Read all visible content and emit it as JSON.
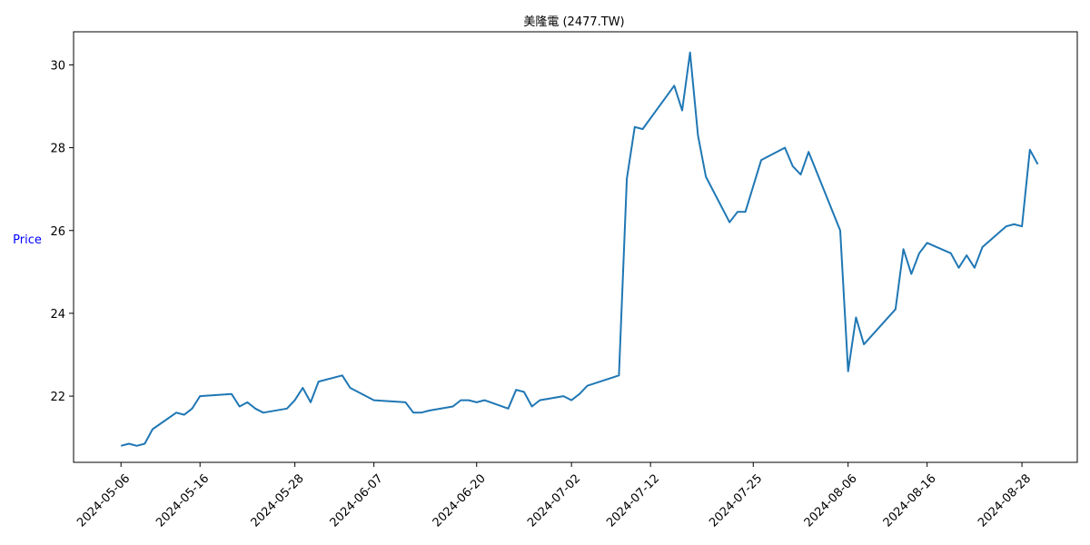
{
  "chart_data": {
    "type": "line",
    "title": "美隆電 (2477.TW)",
    "xlabel": "",
    "ylabel": "Price",
    "ylabel_color": "#0000ff",
    "line_color": "#1f77b4",
    "grid": false,
    "legend": "none",
    "xlim": [
      "2024-04-30",
      "2024-09-04"
    ],
    "ylim": [
      20.4,
      30.8
    ],
    "x_ticks": [
      "2024-05-06",
      "2024-05-16",
      "2024-05-28",
      "2024-06-07",
      "2024-06-20",
      "2024-07-02",
      "2024-07-12",
      "2024-07-25",
      "2024-08-06",
      "2024-08-16",
      "2024-08-28"
    ],
    "y_ticks": [
      22,
      24,
      26,
      28,
      30
    ],
    "series": [
      {
        "x": [
          "2024-05-06",
          "2024-05-07",
          "2024-05-08",
          "2024-05-09",
          "2024-05-10",
          "2024-05-13",
          "2024-05-14",
          "2024-05-15",
          "2024-05-16",
          "2024-05-20",
          "2024-05-21",
          "2024-05-22",
          "2024-05-23",
          "2024-05-24",
          "2024-05-27",
          "2024-05-28",
          "2024-05-29",
          "2024-05-30",
          "2024-05-31",
          "2024-06-03",
          "2024-06-04",
          "2024-06-07",
          "2024-06-11",
          "2024-06-12",
          "2024-06-13",
          "2024-06-14",
          "2024-06-17",
          "2024-06-18",
          "2024-06-19",
          "2024-06-20",
          "2024-06-21",
          "2024-06-24",
          "2024-06-25",
          "2024-06-26",
          "2024-06-27",
          "2024-06-28",
          "2024-07-01",
          "2024-07-02",
          "2024-07-03",
          "2024-07-04",
          "2024-07-08",
          "2024-07-09",
          "2024-07-10",
          "2024-07-11",
          "2024-07-15",
          "2024-07-16",
          "2024-07-17",
          "2024-07-18",
          "2024-07-19",
          "2024-07-22",
          "2024-07-23",
          "2024-07-24",
          "2024-07-26",
          "2024-07-29",
          "2024-07-30",
          "2024-07-31",
          "2024-08-01",
          "2024-08-05",
          "2024-08-06",
          "2024-08-07",
          "2024-08-08",
          "2024-08-12",
          "2024-08-13",
          "2024-08-14",
          "2024-08-15",
          "2024-08-16",
          "2024-08-19",
          "2024-08-20",
          "2024-08-21",
          "2024-08-22",
          "2024-08-23",
          "2024-08-26",
          "2024-08-27",
          "2024-08-28",
          "2024-08-29",
          "2024-08-30"
        ],
        "values": [
          20.8,
          20.85,
          20.8,
          20.85,
          21.2,
          21.6,
          21.55,
          21.7,
          22.0,
          22.05,
          21.75,
          21.85,
          21.7,
          21.6,
          21.7,
          21.9,
          22.2,
          21.85,
          22.35,
          22.5,
          22.2,
          21.9,
          21.85,
          21.6,
          21.6,
          21.65,
          21.75,
          21.9,
          21.9,
          21.85,
          21.9,
          21.7,
          22.15,
          22.1,
          21.75,
          21.9,
          22.0,
          21.9,
          22.05,
          22.25,
          22.5,
          27.25,
          28.5,
          28.45,
          29.5,
          28.9,
          30.3,
          28.3,
          27.3,
          26.2,
          26.45,
          26.45,
          27.7,
          28.0,
          27.55,
          27.35,
          27.9,
          26.0,
          22.6,
          23.9,
          23.25,
          24.1,
          25.55,
          24.95,
          25.45,
          25.7,
          25.45,
          25.1,
          25.4,
          25.1,
          25.6,
          26.1,
          26.15,
          26.1,
          27.95,
          27.6
        ]
      }
    ]
  }
}
